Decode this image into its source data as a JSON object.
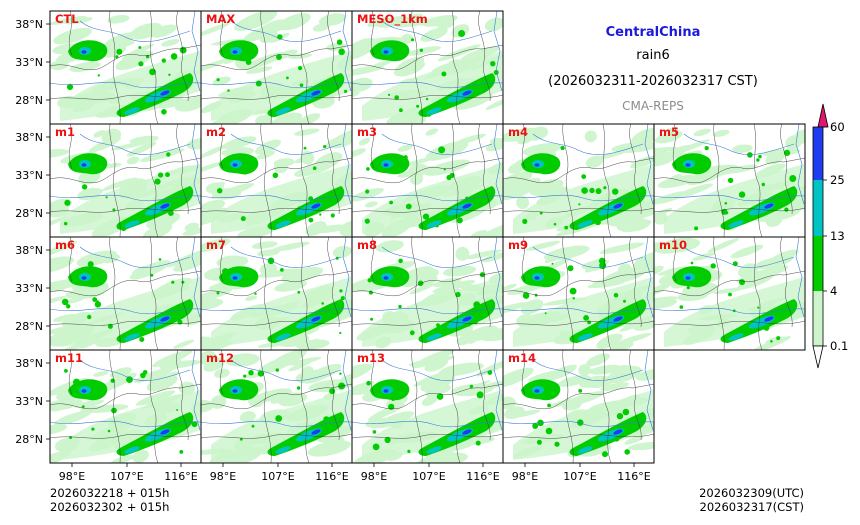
{
  "header": {
    "region": "CentralChina",
    "variable": "rain6",
    "period": "(2026032311-2026032317 CST)",
    "system": "CMA-REPS"
  },
  "panels": [
    [
      "CTL",
      "MAX",
      "MESO_1km"
    ],
    [
      "m1",
      "m2",
      "m3",
      "m4",
      "m5"
    ],
    [
      "m6",
      "m7",
      "m8",
      "m9",
      "m10"
    ],
    [
      "m11",
      "m12",
      "m13",
      "m14"
    ]
  ],
  "axes": {
    "lat_labels": [
      "38°N",
      "33°N",
      "28°N"
    ],
    "lon_labels": [
      "98°E",
      "107°E",
      "116°E"
    ]
  },
  "colorbar": {
    "levels": [
      "0.1",
      "4",
      "13",
      "25",
      "60"
    ],
    "colors": [
      "#ccf5cc",
      "#00cc00",
      "#00c4c4",
      "#1f3df0",
      "#e0156e"
    ]
  },
  "footer": {
    "init_utc": "2026032218  +  015h",
    "init_cst": "2026032302  +  015h",
    "valid_utc": "2026032309(UTC)",
    "valid_cst": "2026032317(CST)"
  }
}
